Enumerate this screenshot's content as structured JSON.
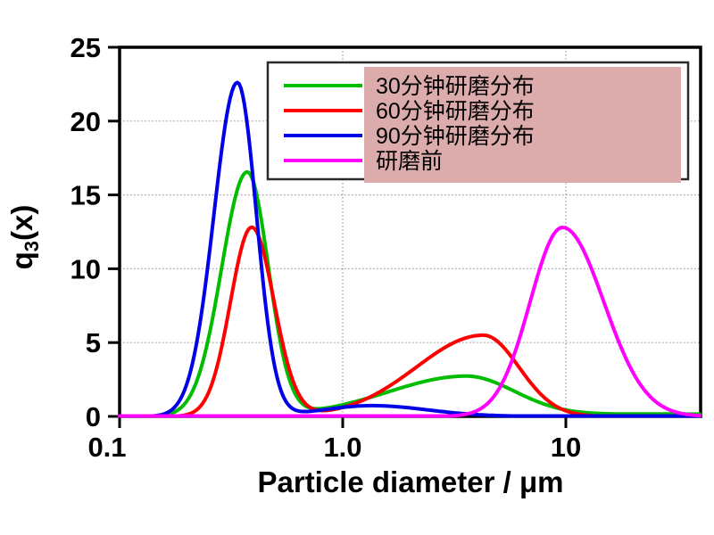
{
  "figure": {
    "background": "#ffffff",
    "frame_color": "#000000"
  },
  "chart_data": {
    "type": "line",
    "title": "",
    "xlabel": "Particle diameter / μm",
    "ylabel": {
      "pre": "q",
      "sub": "3",
      "post": "(x)"
    },
    "x_axis": {
      "scale": "log",
      "range_um": [
        0.1,
        40
      ],
      "ticks": [
        0.1,
        1.0,
        10
      ],
      "tick_labels": [
        "0.1",
        "1.0",
        "10"
      ],
      "gridlines": [
        1.0,
        10
      ]
    },
    "y_axis": {
      "scale": "linear",
      "range": [
        0,
        25
      ],
      "ticks": [
        0,
        5,
        10,
        15,
        20,
        25
      ],
      "tick_labels": [
        "0",
        "5",
        "10",
        "15",
        "20",
        "25"
      ],
      "gridlines": [
        5,
        10,
        15,
        20
      ]
    },
    "grid": {
      "style": "dotted",
      "color": "#9a9a9a"
    },
    "legend": {
      "position": "top-right-inside",
      "box_fill": "#ffffff",
      "box_border": "#2a2a2a",
      "highlight_color": "#dcabab"
    },
    "series": [
      {
        "key": "30min-grind",
        "name": "30分钟研磨分布",
        "color": "#00bd00",
        "peaks": [
          {
            "x_um": 0.37,
            "q3": 16.5
          },
          {
            "x_um": 3.6,
            "q3": 2.7
          }
        ],
        "valley": {
          "x_um": 1.0,
          "q3": 0.6
        },
        "components": [
          {
            "h": 16.5,
            "mu": -0.428,
            "sl": 0.115,
            "sr": 0.095
          },
          {
            "h": 2.7,
            "mu": 0.55,
            "sl": 0.35,
            "sr": 0.22
          },
          {
            "h": 0.16,
            "mu": 1.45,
            "sl": 0.5,
            "sr": 0.5
          }
        ]
      },
      {
        "key": "60min-grind",
        "name": "60分钟研磨分布",
        "color": "#ff0000",
        "peaks": [
          {
            "x_um": 0.39,
            "q3": 12.8
          },
          {
            "x_um": 4.3,
            "q3": 5.5
          }
        ],
        "valley": {
          "x_um": 0.95,
          "q3": 0.55
        },
        "components": [
          {
            "h": 12.8,
            "mu": -0.408,
            "sl": 0.095,
            "sr": 0.1
          },
          {
            "h": 5.5,
            "mu": 0.63,
            "sl": 0.3,
            "sr": 0.16
          }
        ]
      },
      {
        "key": "90min-grind",
        "name": "90分钟研磨分布",
        "color": "#0000e8",
        "peaks": [
          {
            "x_um": 0.34,
            "q3": 22.6
          },
          {
            "x_um": 1.35,
            "q3": 0.7
          }
        ],
        "valley": {
          "x_um": 0.95,
          "q3": 0.6
        },
        "components": [
          {
            "h": 22.6,
            "mu": -0.472,
            "sl": 0.105,
            "sr": 0.085
          },
          {
            "h": 0.73,
            "mu": 0.13,
            "sl": 0.22,
            "sr": 0.25
          }
        ]
      },
      {
        "key": "before-grind",
        "name": "研磨前",
        "color": "#ff00ff",
        "peaks": [
          {
            "x_um": 9.7,
            "q3": 12.8
          }
        ],
        "components": [
          {
            "h": 12.8,
            "mu": 0.985,
            "sl": 0.145,
            "sr": 0.185
          }
        ]
      }
    ]
  }
}
